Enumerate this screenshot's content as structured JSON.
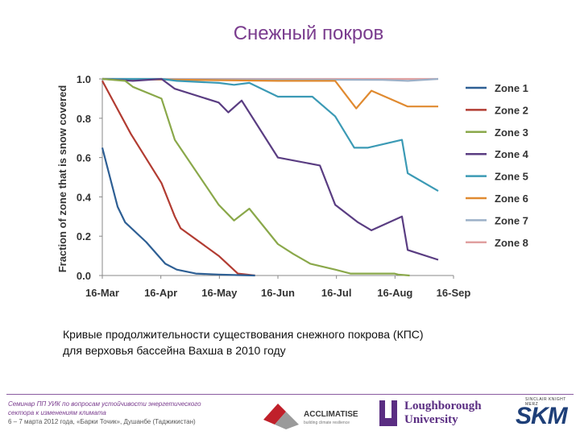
{
  "slide": {
    "title": "Снежный покров",
    "caption_line1": "Кривые продолжительности существования снежного покрова (КПС)",
    "caption_line2": "для верховья бассейна Вахша в 2010 году",
    "footer_line1": "Семинар ПП УИК по вопросам устойчивости энергетического",
    "footer_line2": "сектора к изменениям климата",
    "footer_line3": "6 – 7 марта 2012 года, «Барки Точик», Душанбе (Таджикистан)"
  },
  "logos": {
    "acclimatise": "ACCLIMATISE",
    "acclimatise_sub": "building climate resilience",
    "loughborough_1": "Loughborough",
    "loughborough_2": "University",
    "skm_small": "SINCLAIR KNIGHT MERZ",
    "skm": "SKM",
    "colors": {
      "purple": "#5a2d82",
      "red": "#c0202a",
      "blue": "#1e3f78"
    }
  },
  "chart_data": {
    "type": "line",
    "title": "",
    "xlabel": "",
    "ylabel": "Fraction of zone that is snow covered",
    "x_ticks": [
      "16-Mar",
      "16-Apr",
      "16-May",
      "16-Jun",
      "16-Jul",
      "16-Aug",
      "16-Sep"
    ],
    "y_ticks": [
      "0.0",
      "0.2",
      "0.4",
      "0.6",
      "0.8",
      "1.0"
    ],
    "xlim": [
      "2010-03-16",
      "2010-09-16"
    ],
    "ylim": [
      0,
      1
    ],
    "grid": false,
    "legend_position": "right",
    "series": [
      {
        "name": "Zone 1",
        "color": "#2e5f94",
        "x": [
          "2010-03-16",
          "2010-03-24",
          "2010-03-28",
          "2010-04-08",
          "2010-04-18",
          "2010-04-24",
          "2010-05-04",
          "2010-05-16",
          "2010-05-26",
          "2010-06-04"
        ],
        "y": [
          0.65,
          0.35,
          0.27,
          0.17,
          0.06,
          0.03,
          0.01,
          0.005,
          0.002,
          0.0
        ]
      },
      {
        "name": "Zone 2",
        "color": "#b23c32",
        "x": [
          "2010-03-16",
          "2010-03-31",
          "2010-04-16",
          "2010-04-23",
          "2010-04-26",
          "2010-05-16",
          "2010-05-26",
          "2010-06-04"
        ],
        "y": [
          0.99,
          0.72,
          0.47,
          0.3,
          0.24,
          0.1,
          0.01,
          0.0
        ]
      },
      {
        "name": "Zone 3",
        "color": "#8aa84a",
        "x": [
          "2010-03-16",
          "2010-03-28",
          "2010-04-01",
          "2010-04-16",
          "2010-04-23",
          "2010-05-16",
          "2010-05-24",
          "2010-06-01",
          "2010-06-16",
          "2010-06-24",
          "2010-07-03",
          "2010-07-16",
          "2010-07-24",
          "2010-08-16",
          "2010-08-18",
          "2010-08-24"
        ],
        "y": [
          1.0,
          0.99,
          0.96,
          0.9,
          0.69,
          0.36,
          0.28,
          0.34,
          0.16,
          0.11,
          0.06,
          0.03,
          0.01,
          0.01,
          0.005,
          0.0
        ]
      },
      {
        "name": "Zone 4",
        "color": "#5a3d82",
        "x": [
          "2010-03-16",
          "2010-04-01",
          "2010-04-16",
          "2010-04-23",
          "2010-05-16",
          "2010-05-21",
          "2010-05-28",
          "2010-06-16",
          "2010-07-08",
          "2010-07-16",
          "2010-07-28",
          "2010-08-04",
          "2010-08-20",
          "2010-08-23",
          "2010-09-08"
        ],
        "y": [
          1.0,
          0.99,
          1.0,
          0.95,
          0.88,
          0.83,
          0.89,
          0.6,
          0.56,
          0.36,
          0.27,
          0.23,
          0.3,
          0.13,
          0.08
        ]
      },
      {
        "name": "Zone 5",
        "color": "#3b9ab5",
        "x": [
          "2010-03-16",
          "2010-04-16",
          "2010-04-24",
          "2010-05-16",
          "2010-05-24",
          "2010-06-01",
          "2010-06-16",
          "2010-07-04",
          "2010-07-16",
          "2010-07-26",
          "2010-08-02",
          "2010-08-20",
          "2010-08-23",
          "2010-09-08"
        ],
        "y": [
          1.0,
          1.0,
          0.99,
          0.98,
          0.97,
          0.98,
          0.91,
          0.91,
          0.81,
          0.65,
          0.65,
          0.69,
          0.52,
          0.43
        ]
      },
      {
        "name": "Zone 6",
        "color": "#e08a30",
        "x": [
          "2010-03-16",
          "2010-06-16",
          "2010-07-16",
          "2010-07-27",
          "2010-08-04",
          "2010-08-23",
          "2010-09-08"
        ],
        "y": [
          1.0,
          0.99,
          0.99,
          0.85,
          0.94,
          0.86,
          0.86
        ]
      },
      {
        "name": "Zone 7",
        "color": "#9cb0c8",
        "x": [
          "2010-03-16",
          "2010-08-10",
          "2010-08-23",
          "2010-09-08"
        ],
        "y": [
          1.0,
          0.995,
          0.99,
          1.0
        ]
      },
      {
        "name": "Zone 8",
        "color": "#e0a0a0",
        "x": [
          "2010-03-16",
          "2010-09-08"
        ],
        "y": [
          1.0,
          1.0
        ]
      }
    ]
  }
}
